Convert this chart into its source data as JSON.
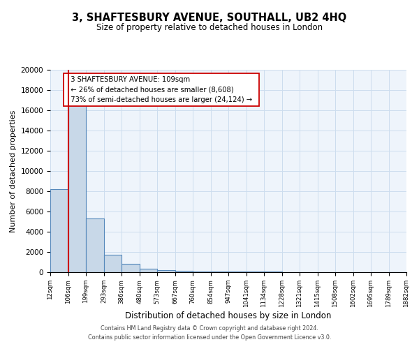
{
  "title": "3, SHAFTESBURY AVENUE, SOUTHALL, UB2 4HQ",
  "subtitle": "Size of property relative to detached houses in London",
  "xlabel": "Distribution of detached houses by size in London",
  "ylabel": "Number of detached properties",
  "bin_labels": [
    "12sqm",
    "106sqm",
    "199sqm",
    "293sqm",
    "386sqm",
    "480sqm",
    "573sqm",
    "667sqm",
    "760sqm",
    "854sqm",
    "947sqm",
    "1041sqm",
    "1134sqm",
    "1228sqm",
    "1321sqm",
    "1415sqm",
    "1508sqm",
    "1602sqm",
    "1695sqm",
    "1789sqm",
    "1882sqm"
  ],
  "bin_edges": [
    12,
    106,
    199,
    293,
    386,
    480,
    573,
    667,
    760,
    854,
    947,
    1041,
    1134,
    1228,
    1321,
    1415,
    1508,
    1602,
    1695,
    1789,
    1882
  ],
  "counts": [
    8200,
    16600,
    5300,
    1750,
    800,
    350,
    200,
    150,
    100,
    80,
    60,
    50,
    40,
    30,
    25,
    20,
    15,
    10,
    8,
    5,
    0
  ],
  "bar_color": "#c8d8e8",
  "bar_edge_color": "#5588bb",
  "bar_linewidth": 0.8,
  "vline_x": 109,
  "vline_color": "#cc0000",
  "vline_linewidth": 1.5,
  "ylim": [
    0,
    20000
  ],
  "yticks": [
    0,
    2000,
    4000,
    6000,
    8000,
    10000,
    12000,
    14000,
    16000,
    18000,
    20000
  ],
  "annotation_title": "3 SHAFTESBURY AVENUE: 109sqm",
  "annotation_line1": "← 26% of detached houses are smaller (8,608)",
  "annotation_line2": "73% of semi-detached houses are larger (24,124) →",
  "grid_color": "#ccddee",
  "bg_color": "#eef4fb",
  "footer1": "Contains HM Land Registry data © Crown copyright and database right 2024.",
  "footer2": "Contains public sector information licensed under the Open Government Licence v3.0."
}
